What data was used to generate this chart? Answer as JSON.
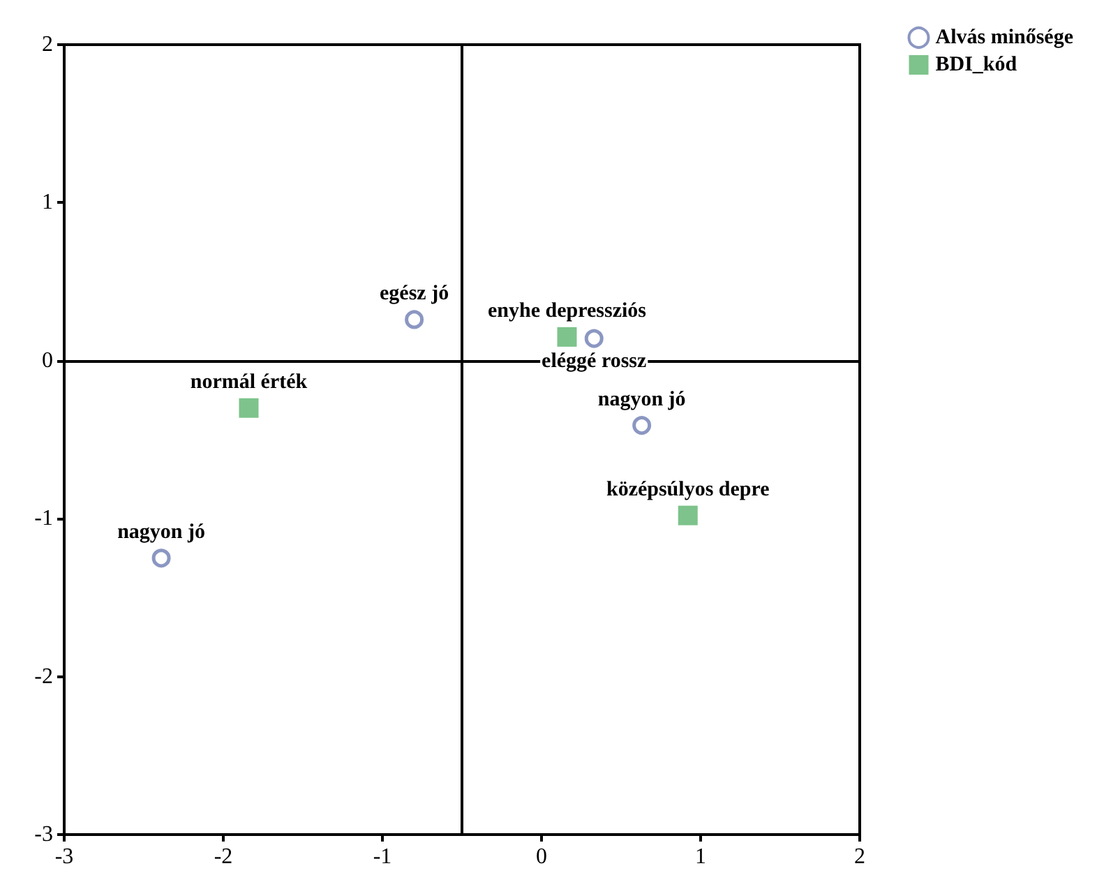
{
  "chart_data": {
    "type": "scatter",
    "series": [
      {
        "name": "Alvás minősége",
        "color": "#6e7db3",
        "marker": "circle",
        "x": [
          -0.8,
          0.33,
          0.63,
          -2.39
        ],
        "values": [
          0.26,
          0.14,
          -0.41,
          -1.25
        ]
      },
      {
        "name": "BDI_kód",
        "color": "#5cb46e",
        "marker": "square",
        "x": [
          0.16,
          0.92,
          -1.84
        ],
        "values": [
          0.15,
          -0.98,
          -0.3
        ]
      }
    ],
    "annotations": [
      {
        "text": "egész jó",
        "x": -0.8,
        "y": 0.26
      },
      {
        "text": "eléggé rossz",
        "x": 0.33,
        "y": 0.14
      },
      {
        "text": "nagyon jó",
        "x": 0.63,
        "y": -0.41
      },
      {
        "text": "nagyon jó",
        "x": -2.39,
        "y": -1.25
      },
      {
        "text": "enyhe depressziós",
        "x": 0.16,
        "y": 0.15
      },
      {
        "text": "középsúlyos depre",
        "x": 0.92,
        "y": -0.98
      },
      {
        "text": "normál érték",
        "x": -1.84,
        "y": -0.3
      }
    ],
    "xlim": [
      -3,
      2
    ],
    "ylim": [
      -3,
      2
    ],
    "xticks": [
      -3,
      -2,
      -1,
      0,
      1,
      2
    ],
    "yticks": [
      -3,
      -2,
      -1,
      0,
      1,
      2
    ],
    "ref_lines": [
      {
        "axis": "x",
        "value": -0.5
      },
      {
        "axis": "y",
        "value": 0
      }
    ],
    "grid": false,
    "legend": "top right"
  }
}
